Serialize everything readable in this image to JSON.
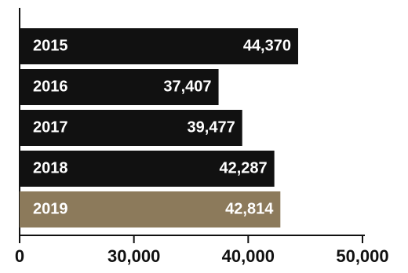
{
  "chart_data": {
    "type": "hbar",
    "categories": [
      "2015",
      "2016",
      "2017",
      "2018",
      "2019"
    ],
    "values": [
      44370,
      37407,
      39477,
      42287,
      42814
    ],
    "value_labels": [
      "44,370",
      "37,407",
      "39,477",
      "42,287",
      "42,814"
    ],
    "colors": [
      "#111111",
      "#111111",
      "#111111",
      "#111111",
      "#8c7a5b"
    ],
    "xlim": [
      0,
      50000
    ],
    "xticks": [
      0,
      {
        "value": 30000,
        "label": "30,000"
      },
      {
        "value": 40000,
        "label": "40,000"
      },
      {
        "value": 50000,
        "label": "50,000"
      }
    ],
    "x_axis_break": true
  }
}
